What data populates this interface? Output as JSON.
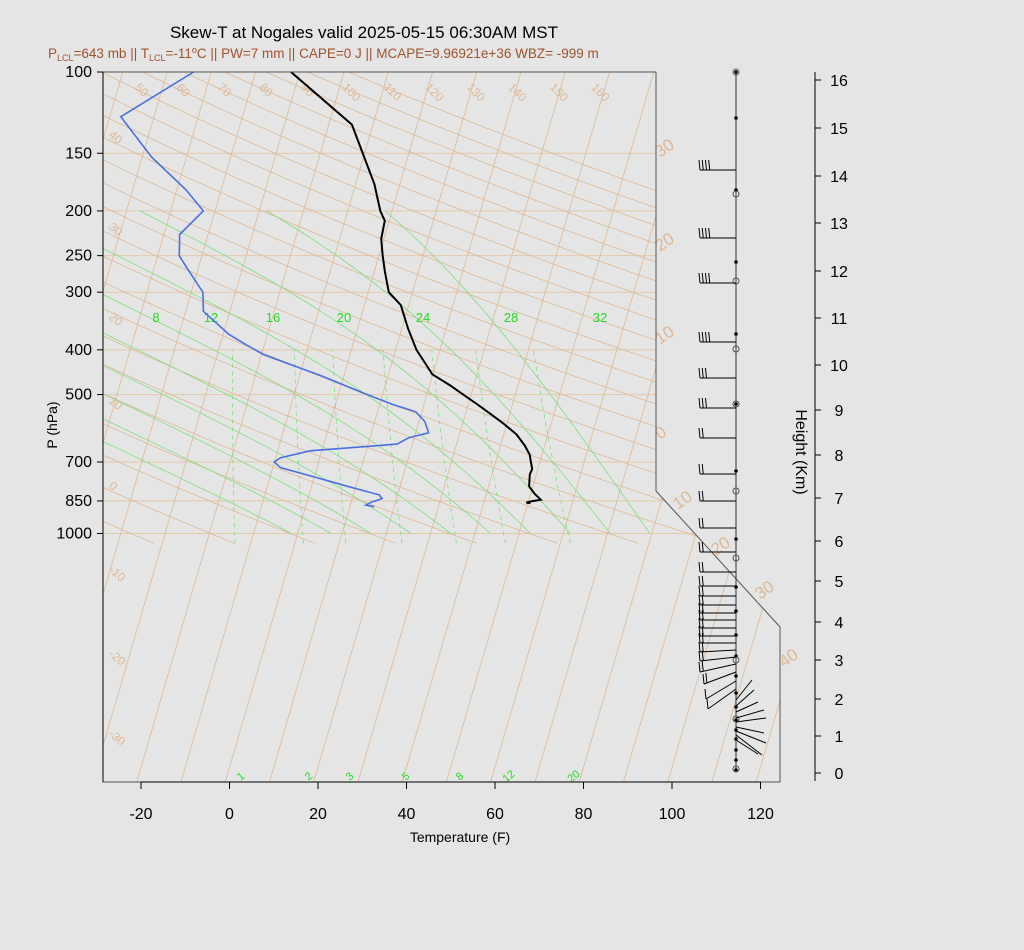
{
  "chart_data": {
    "type": "skew-t",
    "title": "Skew-T at Nogales valid 2025-05-15 06:30AM MST",
    "subtitle": {
      "lcl_pressure": "=643 mb || T",
      "lcl_temp": "=-11",
      "rest": "C || PW=7 mm || CAPE=0 J || MCAPE=9.96921e+36 WBZ= -999 m"
    },
    "xlabel": "Temperature (F)",
    "ylabel": "P (hPa)",
    "y2label": "Height (Km)",
    "x_ticks": [
      -20,
      0,
      20,
      40,
      60,
      80,
      100,
      120
    ],
    "p_ticks": [
      100,
      150,
      200,
      250,
      300,
      400,
      500,
      700,
      850,
      1000
    ],
    "height_ticks": [
      0,
      1,
      2,
      3,
      4,
      5,
      6,
      7,
      8,
      9,
      10,
      11,
      12,
      13,
      14,
      15,
      16
    ],
    "xlim": [
      -28,
      96
    ],
    "plim": [
      100,
      1050
    ],
    "isotherm_labels": [
      50,
      60,
      70,
      80,
      90,
      100,
      110,
      120,
      130,
      140,
      150,
      160
    ],
    "dry_adiabat_labels_left": [
      40,
      30,
      20,
      10,
      0,
      -10,
      -20,
      -30
    ],
    "dry_adiabat_labels_right": [
      30,
      20,
      10,
      0,
      10,
      20,
      30,
      40
    ],
    "mixing_ratio_labels_top": [
      8,
      12,
      16,
      20,
      24,
      28,
      32
    ],
    "mixing_ratio_labels_bottom": [
      1,
      2,
      3,
      5,
      8,
      12,
      20
    ],
    "series": [
      {
        "name": "Temperature",
        "color": "#000000",
        "points": [
          [
            65,
            860
          ],
          [
            64,
            857
          ],
          [
            65,
            852
          ],
          [
            67,
            845
          ],
          [
            65,
            820
          ],
          [
            63,
            790
          ],
          [
            62,
            745
          ],
          [
            62,
            725
          ],
          [
            61,
            700
          ],
          [
            60,
            675
          ],
          [
            58,
            645
          ],
          [
            55,
            610
          ],
          [
            51,
            578
          ],
          [
            47,
            550
          ],
          [
            43,
            524
          ],
          [
            39,
            500
          ],
          [
            35,
            477
          ],
          [
            30,
            452
          ],
          [
            27,
            425
          ],
          [
            24,
            400
          ],
          [
            20,
            360
          ],
          [
            16,
            320
          ],
          [
            12,
            300
          ],
          [
            9,
            270
          ],
          [
            7,
            250
          ],
          [
            5,
            230
          ],
          [
            4,
            210
          ],
          [
            2,
            200
          ],
          [
            -2,
            175
          ],
          [
            -13,
            130
          ],
          [
            -32,
            100
          ]
        ]
      },
      {
        "name": "Dewpoint",
        "color": "#4a6fe0",
        "points": [
          [
            30,
            875
          ],
          [
            28,
            868
          ],
          [
            29,
            855
          ],
          [
            31,
            840
          ],
          [
            30,
            825
          ],
          [
            22,
            790
          ],
          [
            13,
            752
          ],
          [
            5,
            720
          ],
          [
            3,
            700
          ],
          [
            4,
            685
          ],
          [
            10,
            662
          ],
          [
            29,
            640
          ],
          [
            31,
            620
          ],
          [
            35,
            605
          ],
          [
            33,
            572
          ],
          [
            30,
            545
          ],
          [
            24,
            525
          ],
          [
            16,
            495
          ],
          [
            5,
            455
          ],
          [
            -10,
            410
          ],
          [
            -15,
            390
          ],
          [
            -20,
            370
          ],
          [
            -28,
            330
          ],
          [
            -30,
            300
          ],
          [
            -36,
            266
          ],
          [
            -39,
            250
          ],
          [
            -40,
            237
          ],
          [
            -41,
            225
          ],
          [
            -38,
            200
          ],
          [
            -44,
            180
          ],
          [
            -55,
            153
          ],
          [
            -66,
            125
          ],
          [
            -54,
            100
          ]
        ]
      }
    ],
    "wind_dots": [
      16,
      15,
      14,
      13,
      12,
      11,
      10,
      9,
      8,
      7,
      6,
      5,
      4,
      3,
      2,
      1,
      0
    ]
  }
}
